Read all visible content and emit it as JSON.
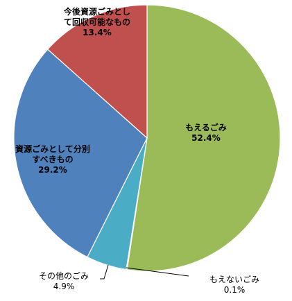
{
  "chart_data": {
    "type": "pie",
    "start_angle_deg": 0,
    "direction": "clockwise",
    "slices": [
      {
        "label_lines": [
          "もえるごみ"
        ],
        "value": 52.4,
        "value_text": "52.4%",
        "color": "#9BBB59"
      },
      {
        "label_lines": [
          "もえないごみ"
        ],
        "value": 0.1,
        "value_text": "0.1%",
        "color": "#8064A2"
      },
      {
        "label_lines": [
          "その他のごみ"
        ],
        "value": 4.9,
        "value_text": "4.9%",
        "color": "#4BACC6"
      },
      {
        "label_lines": [
          "資源ごみとして分別",
          "すべきもの"
        ],
        "value": 29.2,
        "value_text": "29.2%",
        "color": "#4F81BD"
      },
      {
        "label_lines": [
          "今後資源ごみとし",
          "て回収可能なもの"
        ],
        "value": 13.4,
        "value_text": "13.4%",
        "color": "#C0504D"
      }
    ]
  }
}
